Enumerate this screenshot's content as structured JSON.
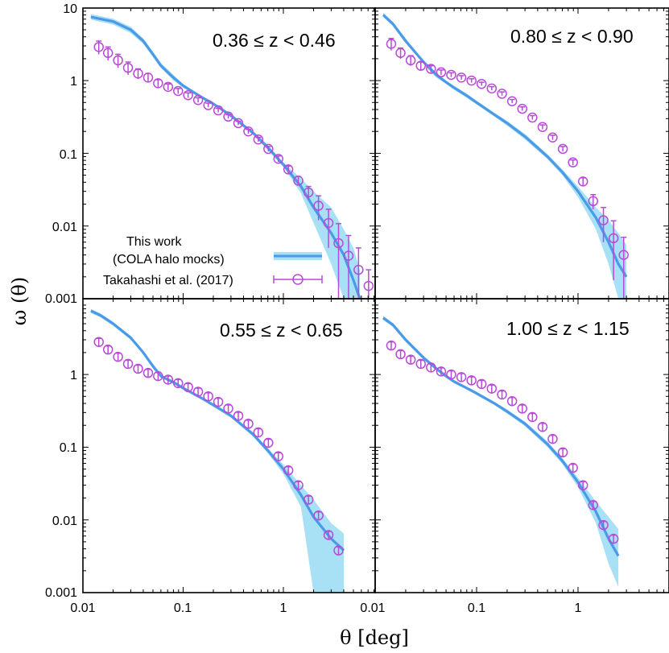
{
  "chart_data": [
    {
      "type": "line",
      "panel": "top-left",
      "redshift_label": "0.36 ≤ z < 0.46",
      "xscale": "log",
      "yscale": "log",
      "xlim": [
        0.01,
        10
      ],
      "ylim": [
        0.001,
        10
      ],
      "model": {
        "name": "This work (COLA halo mocks)",
        "x": [
          0.012,
          0.02,
          0.03,
          0.04,
          0.05,
          0.06,
          0.08,
          0.1,
          0.15,
          0.2,
          0.3,
          0.5,
          0.7,
          1.0,
          1.5,
          2.0,
          3.0,
          4.0,
          5.0,
          5.8
        ],
        "y": [
          7.5,
          6.5,
          5.0,
          3.5,
          2.3,
          1.6,
          1.1,
          0.85,
          0.6,
          0.48,
          0.33,
          0.19,
          0.12,
          0.07,
          0.035,
          0.018,
          0.008,
          0.004,
          0.0018,
          0.001
        ],
        "band_lower": [
          6.9,
          5.9,
          4.5,
          3.2,
          2.1,
          1.5,
          1.0,
          0.8,
          0.57,
          0.46,
          0.31,
          0.18,
          0.11,
          0.065,
          0.028,
          0.011,
          0.003,
          0.001,
          0.001,
          0.001
        ],
        "band_upper": [
          8.2,
          7.1,
          5.5,
          3.8,
          2.5,
          1.75,
          1.2,
          0.9,
          0.63,
          0.5,
          0.35,
          0.2,
          0.13,
          0.075,
          0.045,
          0.03,
          0.018,
          0.009,
          0.005,
          0.0025
        ]
      },
      "observations": {
        "name": "Takahashi et al. (2017)",
        "x": [
          0.0144,
          0.0178,
          0.0224,
          0.0282,
          0.0355,
          0.0447,
          0.0562,
          0.0708,
          0.0891,
          0.112,
          0.141,
          0.178,
          0.224,
          0.282,
          0.355,
          0.447,
          0.562,
          0.708,
          0.891,
          1.12,
          1.41,
          1.78,
          2.24,
          2.82,
          3.55,
          4.47,
          5.62,
          7.08
        ],
        "y": [
          2.9,
          2.4,
          1.9,
          1.5,
          1.25,
          1.1,
          0.92,
          0.82,
          0.72,
          0.63,
          0.54,
          0.46,
          0.39,
          0.32,
          0.26,
          0.2,
          0.155,
          0.115,
          0.084,
          0.06,
          0.042,
          0.029,
          0.019,
          0.011,
          0.0058,
          0.0039,
          0.0025,
          0.0015
        ],
        "err": [
          0.6,
          0.5,
          0.4,
          0.3,
          0.2,
          0.15,
          0.11,
          0.08,
          0.06,
          0.05,
          0.04,
          0.03,
          0.025,
          0.02,
          0.016,
          0.013,
          0.011,
          0.009,
          0.008,
          0.007,
          0.006,
          0.006,
          0.007,
          0.006,
          0.005,
          0.0035,
          0.0025,
          0.001
        ]
      }
    },
    {
      "type": "line",
      "panel": "top-right",
      "redshift_label": "0.80 ≤ z < 0.90",
      "xscale": "log",
      "yscale": "log",
      "xlim": [
        0.01,
        10
      ],
      "ylim": [
        0.001,
        10
      ],
      "model": {
        "name": "This work (COLA halo mocks)",
        "x": [
          0.012,
          0.015,
          0.02,
          0.03,
          0.04,
          0.05,
          0.06,
          0.08,
          0.1,
          0.15,
          0.2,
          0.3,
          0.5,
          0.7,
          1.0,
          1.5,
          2.0,
          2.5,
          3.0
        ],
        "y": [
          8.0,
          6.0,
          3.5,
          1.8,
          1.2,
          0.95,
          0.8,
          0.62,
          0.5,
          0.34,
          0.26,
          0.17,
          0.09,
          0.055,
          0.03,
          0.013,
          0.006,
          0.003,
          0.002
        ],
        "band_lower": [
          7.5,
          5.6,
          3.3,
          1.7,
          1.1,
          0.9,
          0.75,
          0.58,
          0.47,
          0.32,
          0.24,
          0.155,
          0.083,
          0.05,
          0.025,
          0.009,
          0.003,
          0.001,
          0.001
        ],
        "band_upper": [
          8.6,
          6.4,
          3.8,
          1.9,
          1.3,
          1.0,
          0.85,
          0.66,
          0.53,
          0.36,
          0.28,
          0.185,
          0.097,
          0.06,
          0.035,
          0.018,
          0.012,
          0.008,
          0.0055
        ]
      },
      "observations": {
        "name": "Takahashi et al. (2017)",
        "x": [
          0.0144,
          0.0178,
          0.0224,
          0.0282,
          0.0355,
          0.0447,
          0.0562,
          0.0708,
          0.0891,
          0.112,
          0.141,
          0.178,
          0.224,
          0.282,
          0.355,
          0.447,
          0.562,
          0.708,
          0.891,
          1.12,
          1.41,
          1.78,
          2.24,
          2.82
        ],
        "y": [
          3.2,
          2.4,
          1.9,
          1.6,
          1.45,
          1.3,
          1.2,
          1.1,
          1.0,
          0.9,
          0.78,
          0.66,
          0.52,
          0.41,
          0.31,
          0.23,
          0.165,
          0.115,
          0.075,
          0.041,
          0.022,
          0.012,
          0.0068,
          0.004
        ],
        "err": [
          0.6,
          0.4,
          0.3,
          0.2,
          0.15,
          0.1,
          0.08,
          0.07,
          0.06,
          0.05,
          0.045,
          0.04,
          0.03,
          0.025,
          0.02,
          0.016,
          0.012,
          0.009,
          0.006,
          0.005,
          0.005,
          0.006,
          0.005,
          0.003
        ]
      }
    },
    {
      "type": "line",
      "panel": "bottom-left",
      "redshift_label": "0.55 ≤ z < 0.65",
      "xscale": "log",
      "yscale": "log",
      "xlim": [
        0.01,
        10
      ],
      "ylim": [
        0.001,
        10
      ],
      "model": {
        "name": "This work (COLA halo mocks)",
        "x": [
          0.012,
          0.015,
          0.02,
          0.03,
          0.04,
          0.05,
          0.06,
          0.08,
          0.1,
          0.15,
          0.2,
          0.3,
          0.5,
          0.7,
          1.0,
          1.5,
          2.0,
          3.0,
          4.0
        ],
        "y": [
          7.5,
          6.5,
          5.0,
          3.2,
          2.0,
          1.3,
          0.95,
          0.78,
          0.65,
          0.48,
          0.38,
          0.27,
          0.15,
          0.09,
          0.05,
          0.022,
          0.011,
          0.0055,
          0.0038
        ],
        "band_lower": [
          7.0,
          6.1,
          4.7,
          3.0,
          1.9,
          1.2,
          0.9,
          0.74,
          0.62,
          0.46,
          0.36,
          0.255,
          0.14,
          0.083,
          0.043,
          0.015,
          0.001,
          0.001,
          0.001
        ],
        "band_upper": [
          8.0,
          6.9,
          5.3,
          3.4,
          2.1,
          1.4,
          1.0,
          0.82,
          0.68,
          0.5,
          0.4,
          0.285,
          0.16,
          0.097,
          0.058,
          0.03,
          0.019,
          0.009,
          0.0065
        ]
      },
      "observations": {
        "name": "Takahashi et al. (2017)",
        "x": [
          0.0144,
          0.0178,
          0.0224,
          0.0282,
          0.0355,
          0.0447,
          0.0562,
          0.0708,
          0.0891,
          0.112,
          0.141,
          0.178,
          0.224,
          0.282,
          0.355,
          0.447,
          0.562,
          0.708,
          0.891,
          1.12,
          1.41,
          1.78,
          2.24,
          2.82,
          3.55
        ],
        "y": [
          2.8,
          2.2,
          1.75,
          1.4,
          1.2,
          1.05,
          0.95,
          0.85,
          0.76,
          0.67,
          0.58,
          0.5,
          0.42,
          0.34,
          0.27,
          0.21,
          0.16,
          0.115,
          0.075,
          0.048,
          0.03,
          0.019,
          0.0115,
          0.0062,
          0.0038
        ]
      }
    },
    {
      "type": "line",
      "panel": "bottom-right",
      "redshift_label": "1.00 ≤ z < 1.15",
      "xscale": "log",
      "yscale": "log",
      "xlim": [
        0.01,
        10
      ],
      "ylim": [
        0.001,
        10
      ],
      "model": {
        "name": "This work (COLA halo mocks)",
        "x": [
          0.012,
          0.015,
          0.02,
          0.03,
          0.04,
          0.05,
          0.06,
          0.08,
          0.1,
          0.15,
          0.2,
          0.3,
          0.5,
          0.7,
          1.0,
          1.5,
          2.0,
          2.5
        ],
        "y": [
          6.0,
          4.8,
          3.0,
          1.7,
          1.2,
          0.95,
          0.8,
          0.65,
          0.55,
          0.4,
          0.31,
          0.21,
          0.11,
          0.065,
          0.033,
          0.013,
          0.0055,
          0.0032
        ],
        "band_lower": [
          5.6,
          4.5,
          2.8,
          1.6,
          1.15,
          0.9,
          0.76,
          0.62,
          0.52,
          0.38,
          0.29,
          0.195,
          0.1,
          0.059,
          0.028,
          0.009,
          0.0025,
          0.0012
        ],
        "band_upper": [
          6.4,
          5.1,
          3.2,
          1.8,
          1.28,
          1.0,
          0.84,
          0.68,
          0.58,
          0.42,
          0.33,
          0.225,
          0.12,
          0.071,
          0.038,
          0.018,
          0.011,
          0.0075
        ]
      },
      "observations": {
        "name": "Takahashi et al. (2017)",
        "x": [
          0.0144,
          0.0178,
          0.0224,
          0.0282,
          0.0355,
          0.0447,
          0.0562,
          0.0708,
          0.0891,
          0.112,
          0.141,
          0.178,
          0.224,
          0.282,
          0.355,
          0.447,
          0.562,
          0.708,
          0.891,
          1.12,
          1.41,
          1.78,
          2.24
        ],
        "y": [
          2.5,
          1.9,
          1.6,
          1.4,
          1.25,
          1.1,
          1.0,
          0.92,
          0.83,
          0.74,
          0.64,
          0.53,
          0.43,
          0.34,
          0.26,
          0.19,
          0.13,
          0.085,
          0.052,
          0.03,
          0.016,
          0.0085,
          0.0055
        ]
      }
    }
  ],
  "axes": {
    "x_ticks": [
      "0.01",
      "0.1",
      "1"
    ],
    "x_ticks_right": [
      "0.01",
      "0.1",
      "1"
    ],
    "y_ticks_top": [
      "10",
      "1",
      "0.1",
      "0.01",
      "0.001"
    ],
    "y_ticks_bottom": [
      "1",
      "0.1",
      "0.01",
      "0.001"
    ],
    "xlabel": "θ [deg]",
    "ylabel": "ω (θ)"
  },
  "legend": {
    "model_line1": "This work",
    "model_line2": "(COLA halo mocks)",
    "obs_label": "Takahashi et al. (2017)"
  },
  "colors": {
    "model_line": "#4a9ae8",
    "model_band": "#a8e0f5",
    "obs": "#b84ad8"
  }
}
